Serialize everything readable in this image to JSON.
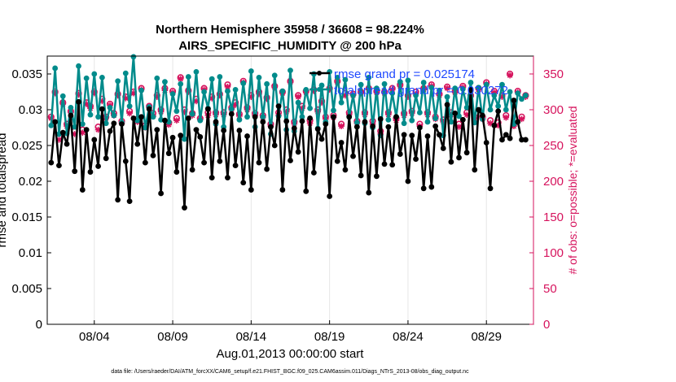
{
  "chart_data": {
    "type": "line",
    "title_line1": "Northern Hemisphere 35958 / 36608 = 98.224%",
    "title_line2": "AIRS_SPECIFIC_HUMIDITY @ 200 hPa",
    "xlabel": "Aug.01,2013 00:00:00 start",
    "ylabel_left": "rmse and totalspread",
    "ylabel_right": "# of obs: o=possible; *=evaluated",
    "xlim": [
      1.0,
      32.0
    ],
    "ylim_left": [
      0,
      0.0375
    ],
    "ylim_right": [
      0,
      375
    ],
    "left_ticks": [
      0,
      0.005,
      0.01,
      0.015,
      0.02,
      0.025,
      0.03,
      0.035
    ],
    "left_tick_labels": [
      "0",
      "0.005",
      "0.01",
      "0.015",
      "0.02",
      "0.025",
      "0.03",
      "0.035"
    ],
    "right_ticks": [
      0,
      50,
      100,
      150,
      200,
      250,
      300,
      350
    ],
    "right_tick_labels": [
      "0",
      "50",
      "100",
      "150",
      "200",
      "250",
      "300",
      "350"
    ],
    "x_ticks": [
      4,
      9,
      14,
      19,
      24,
      29
    ],
    "x_tick_labels": [
      "08/04",
      "08/09",
      "08/14",
      "08/19",
      "08/24",
      "08/29"
    ],
    "footnote": "data file: /Users/raeder/DAI/ATM_forcXX/CAM6_setup/f.e21.FHIST_BGC.f09_025.CAM6assim.011/Diags_NTrS_2013-08/obs_diag_output.nc",
    "colors": {
      "rmse": "#000000",
      "spread": "#008b8b",
      "obs": "#d6135d",
      "legend_text": "#1f49ff"
    },
    "series": [
      {
        "name": "rmse",
        "legend": "rmse grand pr = 0.025174",
        "values": [
          0.0226,
          0.0283,
          0.0222,
          0.0268,
          0.0252,
          0.0292,
          0.0214,
          0.0311,
          0.0188,
          0.0272,
          0.0213,
          0.0258,
          0.0221,
          0.0301,
          0.0232,
          0.027,
          0.0281,
          0.0174,
          0.028,
          0.0228,
          0.0172,
          0.0288,
          0.0252,
          0.029,
          0.0226,
          0.0301,
          0.0236,
          0.0272,
          0.0183,
          0.0285,
          0.0239,
          0.0261,
          0.0213,
          0.0264,
          0.0163,
          0.0288,
          0.0216,
          0.0272,
          0.0262,
          0.0226,
          0.0301,
          0.0205,
          0.0283,
          0.0228,
          0.0271,
          0.0205,
          0.0294,
          0.0222,
          0.0271,
          0.0198,
          0.0263,
          0.0188,
          0.029,
          0.0226,
          0.0283,
          0.0217,
          0.0276,
          0.025,
          0.0305,
          0.0188,
          0.0284,
          0.0229,
          0.0274,
          0.0241,
          0.0284,
          0.0186,
          0.0288,
          0.0212,
          0.0273,
          0.0259,
          0.028,
          0.0179,
          0.029,
          0.0228,
          0.0254,
          0.0216,
          0.029,
          0.0235,
          0.0276,
          0.0208,
          0.0283,
          0.0184,
          0.0277,
          0.0207,
          0.0287,
          0.0224,
          0.0276,
          0.0223,
          0.029,
          0.0238,
          0.0265,
          0.02,
          0.0264,
          0.0231,
          0.0275,
          0.019,
          0.0263,
          0.0192,
          0.0277,
          0.0265,
          0.0246,
          0.0307,
          0.0227,
          0.0295,
          0.0233,
          0.0286,
          0.024,
          0.0328,
          0.0216,
          0.03,
          0.0292,
          0.0254,
          0.019,
          0.0278,
          0.0298,
          0.0258,
          0.0265,
          0.026,
          0.0313,
          0.0283,
          0.0258,
          0.0258
        ]
      },
      {
        "name": "totalspread",
        "legend": "totalspread grand pr = 0.030272",
        "values": [
          0.0278,
          0.0358,
          0.0266,
          0.0319,
          0.0267,
          0.0303,
          0.0276,
          0.0361,
          0.028,
          0.0344,
          0.0293,
          0.035,
          0.029,
          0.0345,
          0.0281,
          0.0303,
          0.0292,
          0.034,
          0.0282,
          0.0351,
          0.0305,
          0.0374,
          0.0285,
          0.0327,
          0.0275,
          0.0304,
          0.029,
          0.0344,
          0.0286,
          0.0339,
          0.0283,
          0.0322,
          0.0298,
          0.0336,
          0.0259,
          0.0346,
          0.0294,
          0.0353,
          0.0285,
          0.0325,
          0.0302,
          0.0343,
          0.028,
          0.0346,
          0.0276,
          0.0326,
          0.0301,
          0.0328,
          0.0286,
          0.0337,
          0.029,
          0.0354,
          0.0276,
          0.0345,
          0.029,
          0.0336,
          0.0266,
          0.0348,
          0.0291,
          0.0326,
          0.0272,
          0.0355,
          0.027,
          0.031,
          0.029,
          0.0328,
          0.0302,
          0.035,
          0.0274,
          0.0334,
          0.0283,
          0.0353,
          0.0299,
          0.0345,
          0.031,
          0.0342,
          0.029,
          0.032,
          0.0282,
          0.0335,
          0.0281,
          0.0345,
          0.0275,
          0.033,
          0.0264,
          0.0336,
          0.0286,
          0.0323,
          0.029,
          0.0339,
          0.0281,
          0.0341,
          0.0285,
          0.032,
          0.0296,
          0.0338,
          0.0283,
          0.0331,
          0.0288,
          0.0327,
          0.0264,
          0.0318,
          0.0283,
          0.033,
          0.0291,
          0.0329,
          0.0303,
          0.0338,
          0.0282,
          0.0331,
          0.0287,
          0.0335,
          0.03,
          0.032,
          0.0305,
          0.0335,
          0.03,
          0.0325,
          0.028,
          0.0323,
          0.0315,
          0.032
        ]
      },
      {
        "name": "obs_possible",
        "marker": "o",
        "values": [
          290,
          325,
          262,
          310,
          280,
          298,
          270,
          323,
          272,
          310,
          305,
          325,
          276,
          315,
          290,
          308,
          295,
          322,
          284,
          318,
          298,
          325,
          287,
          330,
          278,
          305,
          295,
          320,
          300,
          330,
          282,
          326,
          288,
          345,
          300,
          327,
          295,
          315,
          288,
          330,
          296,
          318,
          296,
          322,
          296,
          335,
          303,
          310,
          294,
          340,
          303,
          320,
          295,
          325,
          292,
          317,
          280,
          333,
          296,
          325,
          300,
          340,
          283,
          320,
          305,
          326,
          285,
          328,
          300,
          312,
          290,
          330,
          292,
          340,
          280,
          323,
          296,
          322,
          284,
          325,
          296,
          330,
          284,
          326,
          270,
          325,
          296,
          330,
          288,
          335,
          295,
          320,
          298,
          325,
          280,
          330,
          296,
          335,
          290,
          322,
          286,
          332,
          296,
          326,
          280,
          333,
          296,
          320,
          290,
          330,
          290,
          338,
          285,
          326,
          282,
          320,
          292,
          350,
          280,
          326,
          290,
          320
        ]
      },
      {
        "name": "obs_evaluated",
        "marker": "*",
        "values": [
          288,
          323,
          258,
          308,
          277,
          296,
          266,
          321,
          268,
          308,
          302,
          323,
          272,
          312,
          288,
          306,
          292,
          320,
          281,
          316,
          295,
          323,
          283,
          328,
          275,
          303,
          291,
          318,
          297,
          327,
          279,
          324,
          285,
          343,
          297,
          325,
          292,
          312,
          286,
          328,
          292,
          316,
          293,
          320,
          293,
          332,
          300,
          307,
          291,
          338,
          300,
          318,
          292,
          322,
          289,
          315,
          277,
          331,
          292,
          323,
          297,
          338,
          280,
          318,
          302,
          324,
          281,
          326,
          297,
          310,
          287,
          328,
          289,
          338,
          277,
          320,
          293,
          320,
          281,
          323,
          293,
          328,
          280,
          324,
          266,
          323,
          293,
          328,
          285,
          333,
          292,
          318,
          295,
          322,
          277,
          328,
          293,
          333,
          287,
          320,
          283,
          330,
          293,
          324,
          276,
          331,
          293,
          318,
          287,
          328,
          287,
          336,
          281,
          324,
          278,
          318,
          289,
          348,
          277,
          324,
          287,
          318
        ]
      }
    ]
  }
}
